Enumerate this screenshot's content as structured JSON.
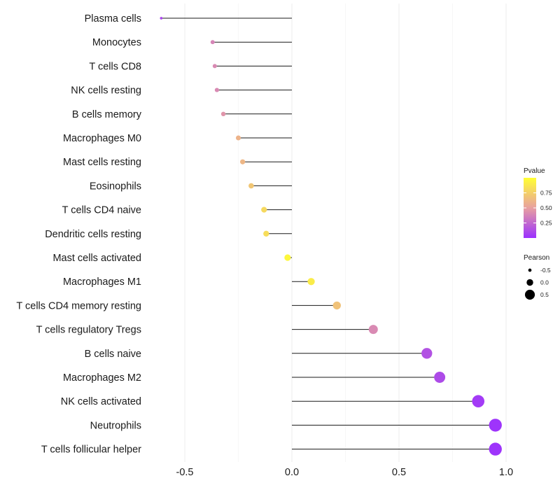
{
  "chart_data": {
    "type": "lollipop",
    "title": "",
    "xlabel": "",
    "ylabel": "",
    "xlim": [
      -0.7,
      1.0
    ],
    "x_ticks": [
      -0.5,
      0.0,
      0.5,
      1.0
    ],
    "x_tick_labels": [
      "-0.5",
      "0.0",
      "0.5",
      "1.0"
    ],
    "grid": true,
    "categories": [
      "Plasma cells",
      "Monocytes",
      "T cells CD8",
      "NK cells resting",
      "B cells memory",
      "Macrophages M0",
      "Mast cells resting",
      "Eosinophils",
      "T cells CD4 naive",
      "Dendritic cells resting",
      "Mast cells activated",
      "Macrophages M1",
      "T cells CD4 memory resting",
      "T cells regulatory  Tregs",
      "B cells naive",
      "Macrophages M2",
      "NK cells activated",
      "Neutrophils",
      "T cells follicular helper"
    ],
    "pearson": [
      -0.61,
      -0.37,
      -0.36,
      -0.35,
      -0.32,
      -0.25,
      -0.23,
      -0.19,
      -0.13,
      -0.12,
      -0.02,
      0.09,
      0.21,
      0.38,
      0.63,
      0.69,
      0.87,
      0.95,
      0.95
    ],
    "pvalue": [
      0.1,
      0.38,
      0.4,
      0.4,
      0.45,
      0.6,
      0.62,
      0.7,
      0.8,
      0.82,
      0.96,
      0.9,
      0.68,
      0.4,
      0.15,
      0.12,
      0.05,
      0.02,
      0.02
    ],
    "legend": {
      "color": {
        "title": "Pvalue",
        "ticks": [
          0.75,
          0.5,
          0.25
        ],
        "tick_labels": [
          "0.75",
          "0.50",
          "0.25"
        ],
        "low_color": "#9b30ff",
        "mid_color": "#e8a0a0",
        "high_color": "#ffff33"
      },
      "size": {
        "title": "Pearson",
        "values": [
          -0.5,
          0.0,
          0.5
        ],
        "labels": [
          "-0.5",
          "0.0",
          "0.5"
        ]
      },
      "placement": "right"
    }
  }
}
